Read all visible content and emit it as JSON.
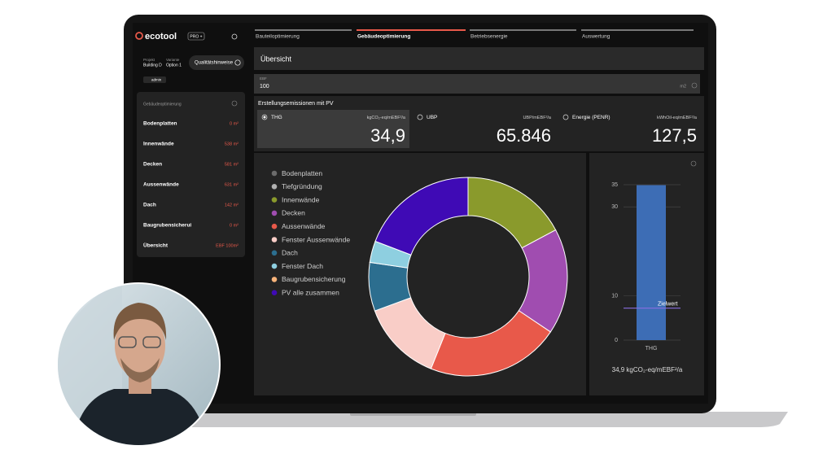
{
  "header": {
    "logo": "ecotool",
    "badge": "PRO +"
  },
  "tabs": [
    "Bauteiloptimierung",
    "Gebäudeoptimierung",
    "Betriebsenergie",
    "Auswertung"
  ],
  "sidebar": {
    "project_label": "Projekt",
    "project": "Building D",
    "variant_label": "Variante",
    "variant": "Option 1",
    "button": "Qualitätshinweise",
    "user": "admin",
    "list_title": "Gebäudeoptimierung",
    "rows": [
      {
        "name": "Bodenplatten",
        "value": "0 m²"
      },
      {
        "name": "Innenwände",
        "value": "538 m²"
      },
      {
        "name": "Decken",
        "value": "581 m²"
      },
      {
        "name": "Aussenwände",
        "value": "631 m²"
      },
      {
        "name": "Dach",
        "value": "142 m²"
      },
      {
        "name": "Baugrubensicherui",
        "value": "0 m²"
      },
      {
        "name": "Übersicht",
        "value": "EBF 100m²"
      }
    ]
  },
  "overview": {
    "title": "Übersicht",
    "input_label": "EBF",
    "input_value": "100",
    "input_unit": "m2",
    "section_title": "Erstellungsemissionen mit PV",
    "cards": [
      {
        "label": "THG",
        "unit": "kgCO₂-eq/mEBF²/a",
        "value": "34,9"
      },
      {
        "label": "UBP",
        "unit": "UBP/mEBF²/a",
        "value": "65.846"
      },
      {
        "label": "Energie (PENR)",
        "unit": "kWhOil-eq/mEBF²/a",
        "value": "127,5"
      }
    ]
  },
  "chart_data": [
    {
      "type": "pie",
      "categories": [
        "Bodenplatten",
        "Tiefgründung",
        "Innenwände",
        "Decken",
        "Aussenwände",
        "Fenster Aussenwände",
        "Dach",
        "Fenster Dach",
        "Baugrubensicherung",
        "PV alle zusammen"
      ],
      "values": [
        0,
        0,
        17.2,
        17.2,
        21.7,
        13.3,
        7.9,
        3.5,
        0,
        19.2
      ],
      "colors": [
        "#6b6b6b",
        "#b0b0b0",
        "#8a9a2c",
        "#a04db0",
        "#e8594a",
        "#f9cdc7",
        "#2c6e8f",
        "#8ecfe0",
        "#f7b37a",
        "#3f0ab5"
      ]
    },
    {
      "type": "bar",
      "categories": [
        "THG"
      ],
      "values": [
        34.9
      ],
      "color": "#3d6db5",
      "ylim": [
        0,
        35
      ],
      "yticks": [
        0,
        10,
        30,
        35
      ],
      "grid": true,
      "annotation": {
        "text": "Zielwert",
        "value": 7.2,
        "color": "#8a6ee0"
      },
      "xlabel": "34,9 kgCO₂-eq/mEBF²/a"
    }
  ]
}
